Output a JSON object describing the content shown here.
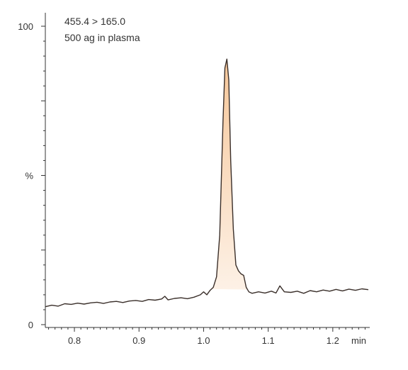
{
  "chart_data": {
    "type": "area",
    "annotations": [
      "455.4 > 165.0",
      "500 ag in plasma"
    ],
    "ylabel": "%",
    "xunit": "min",
    "xlim": [
      0.755,
      1.255
    ],
    "ylim": [
      0,
      100
    ],
    "x_ticks": [
      0.8,
      0.9,
      1.0,
      1.1,
      1.2
    ],
    "x_tick_labels": [
      "0.8",
      "0.9",
      "1.0",
      "1.1",
      "1.2"
    ],
    "y_ticks": [
      0,
      100
    ],
    "y_tick_labels": [
      "0",
      "100"
    ],
    "peak_fill_color": "#f6c79a",
    "line_color": "#3a2f2a",
    "peak": {
      "start": 1.012,
      "apex": 1.036,
      "end": 1.068,
      "apex_value": 89
    },
    "series": [
      {
        "x": [
          0.755,
          0.765,
          0.775,
          0.785,
          0.795,
          0.805,
          0.815,
          0.825,
          0.835,
          0.845,
          0.855,
          0.865,
          0.875,
          0.885,
          0.895,
          0.905,
          0.915,
          0.925,
          0.935,
          0.94,
          0.945,
          0.955,
          0.965,
          0.975,
          0.985,
          0.995,
          1.0,
          1.005,
          1.01,
          1.015,
          1.02,
          1.025,
          1.03,
          1.033,
          1.036,
          1.039,
          1.042,
          1.046,
          1.05,
          1.054,
          1.058,
          1.062,
          1.066,
          1.07,
          1.075,
          1.085,
          1.095,
          1.105,
          1.112,
          1.118,
          1.125,
          1.135,
          1.145,
          1.155,
          1.165,
          1.175,
          1.185,
          1.195,
          1.205,
          1.215,
          1.225,
          1.235,
          1.245,
          1.255
        ],
        "values": [
          6.0,
          6.5,
          6.2,
          7.0,
          6.8,
          7.2,
          6.9,
          7.3,
          7.5,
          7.1,
          7.6,
          7.8,
          7.4,
          7.9,
          8.1,
          7.8,
          8.4,
          8.2,
          8.6,
          9.5,
          8.3,
          8.8,
          9.0,
          8.7,
          9.2,
          10.0,
          11.0,
          10.0,
          11.5,
          12.5,
          16.0,
          30.0,
          68.0,
          86.0,
          89.0,
          82.0,
          55.0,
          32.0,
          20.0,
          18.0,
          17.0,
          16.5,
          12.5,
          11.0,
          10.5,
          11.0,
          10.6,
          11.2,
          10.6,
          13.0,
          11.0,
          10.8,
          11.2,
          10.5,
          11.4,
          11.0,
          11.6,
          11.2,
          11.8,
          11.3,
          11.9,
          11.5,
          12.0,
          11.7
        ]
      }
    ]
  }
}
